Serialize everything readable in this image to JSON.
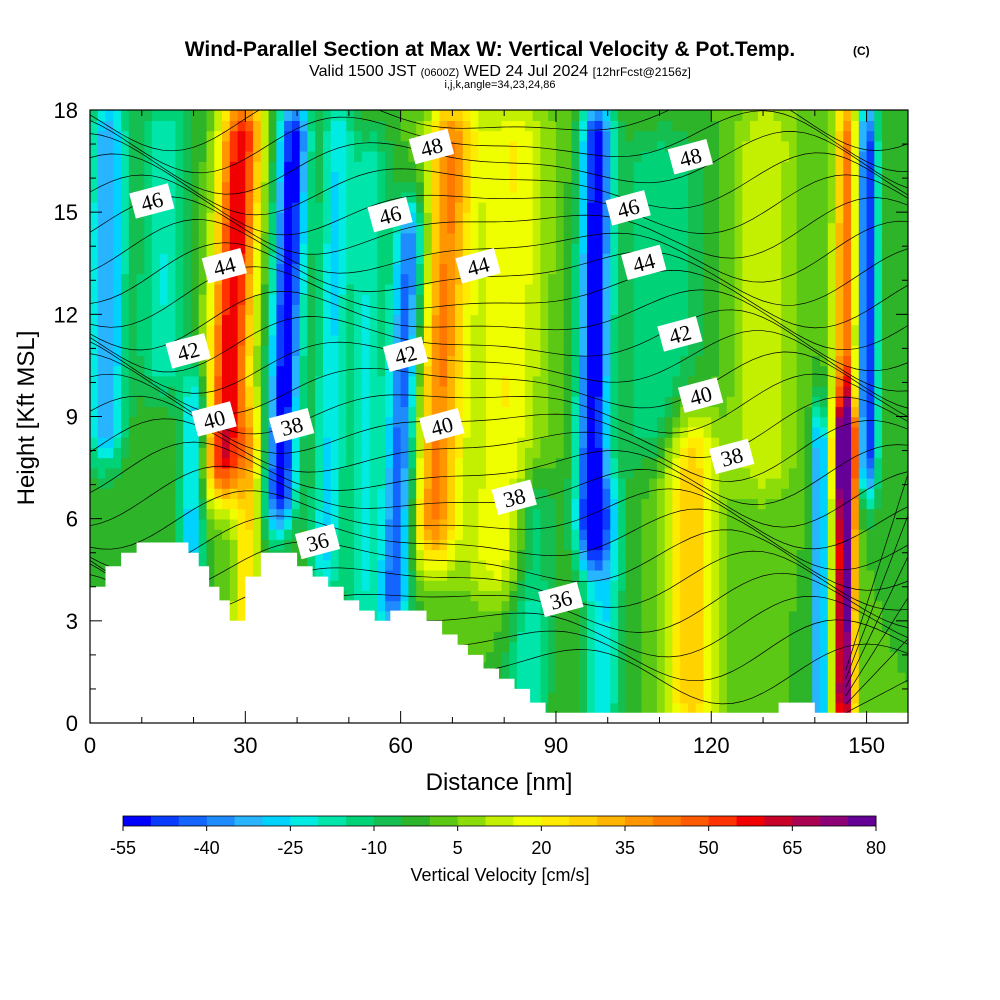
{
  "header": {
    "title": "Wind-Parallel Section at Max W: Vertical Velocity & Pot.Temp.",
    "copyright": "(C)",
    "valid_prefix": "Valid 1500 JST",
    "valid_utc": "(0600Z)",
    "valid_date": "WED 24 Jul 2024",
    "forecast": "[12hrFcst@2156z]",
    "indices": "i,j,k,angle=34,23,24,86"
  },
  "chart_data": {
    "type": "heatmap",
    "xlabel": "Distance [nm]",
    "ylabel": "Height [Kft MSL]",
    "xlim": [
      0,
      158
    ],
    "ylim": [
      0,
      18
    ],
    "xticks": [
      0,
      30,
      60,
      90,
      120,
      150
    ],
    "yticks": [
      0,
      3,
      6,
      9,
      12,
      15,
      18
    ],
    "colorbar": {
      "label": "Vertical Velocity [cm/s]",
      "min": -55,
      "max": 80,
      "step": 5,
      "tick_labels": [
        "-55",
        "-40",
        "-25",
        "-10",
        "5",
        "20",
        "35",
        "50",
        "65",
        "80"
      ],
      "colors": [
        "#0000ff",
        "#0a3cff",
        "#1464ff",
        "#1e8cff",
        "#28b4ff",
        "#00d2ff",
        "#00ebe1",
        "#00e6aa",
        "#00d278",
        "#14be50",
        "#2db428",
        "#5ac814",
        "#8cdc0a",
        "#c3f000",
        "#f0ff00",
        "#ffeb00",
        "#ffd200",
        "#ffb400",
        "#ff9600",
        "#ff7800",
        "#ff5a00",
        "#ff3200",
        "#f00000",
        "#c80028",
        "#aa0050",
        "#8c0078",
        "#640096"
      ]
    },
    "updrafts": [
      {
        "x": 26,
        "z": 11,
        "w": 60
      },
      {
        "x": 68,
        "z": 14,
        "w": 35
      },
      {
        "x": 116,
        "z": 4.5,
        "w": 30
      },
      {
        "x": 146,
        "z": 4.5,
        "w": 80
      },
      {
        "x": 146,
        "z": 13,
        "w": 45
      }
    ],
    "downdrafts": [
      {
        "x": 37,
        "z": 13,
        "w": -55
      },
      {
        "x": 97,
        "z": 12,
        "w": -55
      },
      {
        "x": 58,
        "z": 10,
        "w": -45
      },
      {
        "x": 3,
        "z": 14,
        "w": -35
      },
      {
        "x": 150,
        "z": 15,
        "w": -55
      }
    ],
    "contour_series": "Potential Temperature",
    "contour_labels": [
      {
        "text": "46",
        "x": 12,
        "z": 15.3
      },
      {
        "text": "44",
        "x": 26,
        "z": 13.4
      },
      {
        "text": "42",
        "x": 19,
        "z": 10.9
      },
      {
        "text": "40",
        "x": 24,
        "z": 8.9
      },
      {
        "text": "38",
        "x": 39,
        "z": 8.7
      },
      {
        "text": "36",
        "x": 44,
        "z": 5.3
      },
      {
        "text": "48",
        "x": 66,
        "z": 16.9
      },
      {
        "text": "46",
        "x": 58,
        "z": 14.9
      },
      {
        "text": "44",
        "x": 75,
        "z": 13.4
      },
      {
        "text": "42",
        "x": 61,
        "z": 10.8
      },
      {
        "text": "40",
        "x": 68,
        "z": 8.7
      },
      {
        "text": "38",
        "x": 82,
        "z": 6.6
      },
      {
        "text": "36",
        "x": 91,
        "z": 3.6
      },
      {
        "text": "48",
        "x": 116,
        "z": 16.6
      },
      {
        "text": "46",
        "x": 104,
        "z": 15.1
      },
      {
        "text": "44",
        "x": 107,
        "z": 13.5
      },
      {
        "text": "42",
        "x": 114,
        "z": 11.4
      },
      {
        "text": "40",
        "x": 118,
        "z": 9.6
      },
      {
        "text": "38",
        "x": 124,
        "z": 7.8
      }
    ]
  }
}
